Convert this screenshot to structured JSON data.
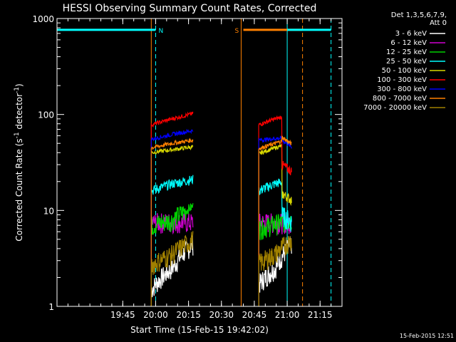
{
  "chart_data": {
    "type": "line",
    "title": "HESSI Observing Summary Count Rates, Corrected",
    "xlabel": "Start Time (15-Feb-15 19:42:02)",
    "ylabel": "Corrected Count Rate (s⁻¹ detector⁻¹)",
    "ylabel_main": "Corrected Count Rate (s",
    "ylabel_sup1": "-1",
    "ylabel_mid": " detector",
    "ylabel_sup2": "-1",
    "ylabel_end": ")",
    "xscale": "linear",
    "yscale": "log",
    "xlim_minutes": [
      -45,
      85
    ],
    "ylim": [
      1,
      1000
    ],
    "x_ticks": [
      {
        "minute": -15,
        "label": "19:45"
      },
      {
        "minute": 0,
        "label": "20:00"
      },
      {
        "minute": 15,
        "label": "20:15"
      },
      {
        "minute": 30,
        "label": "20:30"
      },
      {
        "minute": 45,
        "label": "20:45"
      },
      {
        "minute": 60,
        "label": "21:00"
      },
      {
        "minute": 75,
        "label": "21:15"
      }
    ],
    "y_ticks": [
      {
        "value": 1,
        "label": "1"
      },
      {
        "value": 10,
        "label": "10"
      },
      {
        "value": 100,
        "label": "100"
      },
      {
        "value": 1000,
        "label": "1000"
      }
    ],
    "legend_header": [
      "Det 1,3,5,6,7,9,",
      "Att 0"
    ],
    "legend_placement": "right",
    "series": [
      {
        "name": "3 - 6 keV",
        "color": "#ffffff",
        "orbit1": [
          1.5,
          2.5,
          4.5
        ],
        "orbit2": [
          1.7,
          2.5,
          4.5
        ]
      },
      {
        "name": "6 - 12 keV",
        "color": "#d000d0",
        "orbit1": [
          7.5,
          7.6,
          7.5
        ],
        "orbit2": [
          7.5,
          7.5,
          7.5
        ]
      },
      {
        "name": "12 - 25 keV",
        "color": "#00d000",
        "orbit1": [
          7.0,
          8.0,
          11.0
        ],
        "orbit2": [
          6.5,
          7.2,
          8.0
        ]
      },
      {
        "name": "25 - 50 keV",
        "color": "#00ffff",
        "orbit1": [
          16.0,
          19.0,
          21.0
        ],
        "orbit2": [
          16.0,
          19.0,
          21.0
        ]
      },
      {
        "name": "50 - 100 keV",
        "color": "#d8d800",
        "orbit1": [
          40.0,
          43.0,
          46.0
        ],
        "orbit2": [
          39.0,
          45.0,
          50.0
        ]
      },
      {
        "name": "100 - 300 keV",
        "color": "#ff0000",
        "orbit1": [
          78.0,
          90.0,
          102.0
        ],
        "orbit2": [
          78.0,
          90.0,
          100.0
        ]
      },
      {
        "name": "300 - 800 keV",
        "color": "#0000ff",
        "orbit1": [
          55.0,
          62.0,
          68.0
        ],
        "orbit2": [
          54.0,
          56.0,
          57.0
        ]
      },
      {
        "name": "800 - 7000 keV",
        "color": "#ff8000",
        "orbit1": [
          45.0,
          50.0,
          54.0
        ],
        "orbit2": [
          44.0,
          50.0,
          57.0
        ]
      },
      {
        "name": "7000 - 20000 keV",
        "color": "#a08000",
        "orbit1": [
          2.7,
          3.5,
          5.0
        ],
        "orbit2": [
          2.8,
          3.5,
          5.0
        ]
      }
    ],
    "orbit1_minutes": [
      -2,
      17
    ],
    "orbit2_minutes": [
      47,
      62
    ],
    "orbit2_late_values": {
      "100 - 300 keV": 30,
      "300 - 800 keV": 54,
      "800 - 7000 keV": 58,
      "50 - 100 keV": 15,
      "25 - 50 keV": 9
    },
    "vertical_markers": [
      {
        "minute": -45,
        "style": "solid",
        "color": "#00ffff"
      },
      {
        "minute": -2,
        "style": "solid",
        "color": "#ff8000"
      },
      {
        "minute": 0,
        "style": "dashed",
        "color": "#00ffff"
      },
      {
        "minute": 39,
        "style": "solid",
        "color": "#ff8000"
      },
      {
        "minute": 60,
        "style": "solid",
        "color": "#00ffff"
      },
      {
        "minute": 67,
        "style": "dashed",
        "color": "#ff8000"
      },
      {
        "minute": 80,
        "style": "dashed",
        "color": "#00ffff"
      }
    ],
    "flag_bars": [
      {
        "label": "N",
        "color": "#00ffff",
        "from": -45,
        "to": 0
      },
      {
        "label": "S",
        "color": "#ff8000",
        "from": 40,
        "to": 67
      },
      {
        "label": "",
        "color": "#00ffff",
        "from": 60,
        "to": 80
      }
    ],
    "flag_value": 700
  },
  "footer": {
    "date_stamp": "15-Feb-2015 12:51"
  }
}
